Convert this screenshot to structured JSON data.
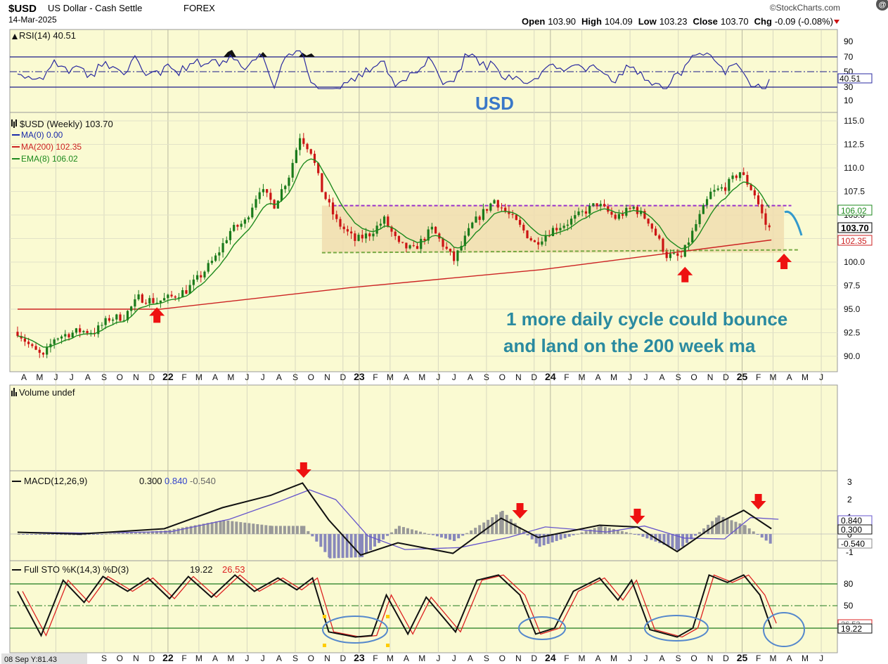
{
  "header": {
    "symbol": "$USD",
    "name": "US Dollar - Cash Settle",
    "exchange": "FOREX",
    "brand": "©StockCharts.com",
    "date": "14-Mar-2025",
    "ohlc": [
      {
        "label": "Open",
        "value": "103.90"
      },
      {
        "label": "High",
        "value": "104.09"
      },
      {
        "label": "Low",
        "value": "103.23"
      },
      {
        "label": "Close",
        "value": "103.70"
      },
      {
        "label": "Chg",
        "value": "-0.09 (-0.08%)"
      }
    ],
    "badge": "@"
  },
  "colors": {
    "plot_bg": "#fafad2",
    "candle_up": "#1a7a1a",
    "candle_down": "#cc1414",
    "ma200": "#cc2222",
    "ema8": "#1e8a1e",
    "resistance": "#9933cc",
    "support": "#77aa44",
    "range_fill": "#f0ddb0",
    "annotation": "#2a8aa0",
    "usd_label": "#3a78c8",
    "arrow": "#ee1111",
    "macd": "#111111",
    "signal": "#6655cc",
    "histogram": "#8888bb",
    "stoch_k": "#111111",
    "stoch_d": "#dd2222",
    "ellipse": "#5588cc"
  },
  "x_axis": {
    "labels": [
      "A",
      "M",
      "J",
      "J",
      "A",
      "S",
      "O",
      "N",
      "D",
      "22",
      "F",
      "M",
      "A",
      "M",
      "J",
      "J",
      "A",
      "S",
      "O",
      "N",
      "D",
      "23",
      "F",
      "M",
      "A",
      "M",
      "J",
      "J",
      "A",
      "S",
      "O",
      "N",
      "D",
      "24",
      "F",
      "M",
      "A",
      "M",
      "J",
      "J",
      "A",
      "S",
      "O",
      "N",
      "D",
      "25",
      "F",
      "M",
      "A",
      "M",
      "J"
    ],
    "bold": [
      "22",
      "23",
      "24",
      "25"
    ],
    "bottom_labels": [
      "S",
      "O",
      "N",
      "D",
      "22",
      "F",
      "M",
      "A",
      "M",
      "J",
      "J",
      "A",
      "S",
      "O",
      "N",
      "D",
      "23",
      "F",
      "M",
      "A",
      "M",
      "J",
      "J",
      "A",
      "S",
      "O",
      "N",
      "D",
      "24",
      "F",
      "M",
      "A",
      "M",
      "J",
      "J",
      "A",
      "S",
      "O",
      "N",
      "D",
      "25",
      "F",
      "M",
      "A",
      "M",
      "J"
    ],
    "cursor_readout": "08 Sep Y:81.43"
  },
  "panels": {
    "rsi": {
      "legend": "RSI(14) 40.51",
      "ticks": [
        "90",
        "70",
        "50",
        "30",
        "10"
      ],
      "value_tag": "40.51",
      "last": 40.51
    },
    "price": {
      "legend_title": "$USD (Weekly) 103.70",
      "legend_items": [
        {
          "name": "MA(0) 0.00",
          "color": "#1a2aaa"
        },
        {
          "name": "MA(200) 102.35",
          "color": "#cc2222"
        },
        {
          "name": "EMA(8) 106.02",
          "color": "#1e8a1e"
        }
      ],
      "ticks": [
        "115.0",
        "112.5",
        "110.0",
        "107.5",
        "105.0",
        "102.5",
        "100.0",
        "97.5",
        "95.0",
        "92.5",
        "90.0"
      ],
      "value_tags": [
        {
          "text": "106.02",
          "color": "#1e8a1e",
          "value": 106.02
        },
        {
          "text": "103.70",
          "color": "#000000",
          "value": 103.7
        },
        {
          "text": "102.35",
          "color": "#cc2222",
          "value": 102.35
        }
      ],
      "title_text": "USD",
      "annotation_lines": [
        "1 more daily cycle could bounce",
        "and land on the 200 week ma"
      ],
      "resistance_level": 106.0,
      "support_level": 101.0
    },
    "volume": {
      "legend": "Volume undef"
    },
    "macd": {
      "legend_prefix": "MACD(12,26,9)",
      "legend_values": [
        {
          "text": "0.300",
          "color": "#111111"
        },
        {
          "text": "0.840",
          "color": "#3344cc"
        },
        {
          "text": "-0.540",
          "color": "#666666"
        }
      ],
      "ticks": [
        "3",
        "2",
        "1",
        "0",
        "-1"
      ],
      "value_tags": [
        "0.840",
        "0.300",
        "-0.540"
      ]
    },
    "stoch": {
      "legend_prefix": "Full STO %K(14,3) %D(3)",
      "legend_values": [
        {
          "text": "19.22",
          "color": "#111111"
        },
        {
          "text": "26.53",
          "color": "#dd2222"
        }
      ],
      "ticks": [
        "80",
        "50",
        "20"
      ],
      "value_tags": [
        "26.53",
        "19.22"
      ]
    }
  },
  "chart_data": {
    "type": "candlestick",
    "title": "$USD US Dollar - Cash Settle FOREX",
    "interval": "weekly",
    "x_range": [
      "2021-04",
      "2025-06"
    ],
    "ylim": [
      89.5,
      115.5
    ],
    "price_path": [
      [
        "2021-04-05",
        92.6
      ],
      [
        "2021-05-03",
        90.8
      ],
      [
        "2021-05-24",
        89.9
      ],
      [
        "2021-06-14",
        91.9
      ],
      [
        "2021-07-05",
        92.3
      ],
      [
        "2021-08-02",
        92.7
      ],
      [
        "2021-08-30",
        92.6
      ],
      [
        "2021-09-27",
        94.0
      ],
      [
        "2021-10-25",
        94.2
      ],
      [
        "2021-11-22",
        96.2
      ],
      [
        "2021-12-27",
        95.8
      ],
      [
        "2022-01-24",
        96.3
      ],
      [
        "2022-02-21",
        97.0
      ],
      [
        "2022-03-21",
        98.6
      ],
      [
        "2022-04-18",
        100.5
      ],
      [
        "2022-05-16",
        103.3
      ],
      [
        "2022-06-13",
        104.3
      ],
      [
        "2022-07-11",
        107.8
      ],
      [
        "2022-08-08",
        106.1
      ],
      [
        "2022-09-05",
        109.2
      ],
      [
        "2022-09-26",
        113.4
      ],
      [
        "2022-10-17",
        111.8
      ],
      [
        "2022-11-07",
        107.6
      ],
      [
        "2022-12-05",
        104.3
      ],
      [
        "2023-01-09",
        102.3
      ],
      [
        "2023-02-06",
        103.0
      ],
      [
        "2023-03-06",
        104.5
      ],
      [
        "2023-04-03",
        101.8
      ],
      [
        "2023-05-01",
        101.3
      ],
      [
        "2023-06-05",
        103.5
      ],
      [
        "2023-07-17",
        100.2
      ],
      [
        "2023-08-21",
        104.0
      ],
      [
        "2023-10-02",
        106.6
      ],
      [
        "2023-11-13",
        104.2
      ],
      [
        "2023-12-18",
        102.0
      ],
      [
        "2024-01-22",
        103.5
      ],
      [
        "2024-02-19",
        104.2
      ],
      [
        "2024-04-15",
        106.2
      ],
      [
        "2024-05-20",
        104.7
      ],
      [
        "2024-06-24",
        105.8
      ],
      [
        "2024-07-22",
        104.4
      ],
      [
        "2024-08-26",
        100.7
      ],
      [
        "2024-09-23",
        100.5
      ],
      [
        "2024-10-21",
        104.0
      ],
      [
        "2024-11-18",
        107.3
      ],
      [
        "2024-12-16",
        108.0
      ],
      [
        "2025-01-13",
        109.6
      ],
      [
        "2025-02-10",
        107.2
      ],
      [
        "2025-03-03",
        104.0
      ],
      [
        "2025-03-14",
        103.7
      ]
    ],
    "last_candle": {
      "open": 103.9,
      "high": 104.09,
      "low": 103.23,
      "close": 103.7
    },
    "indicators": {
      "ma200": [
        [
          "2021-04-05",
          95.0
        ],
        [
          "2022-01-03",
          95.0
        ],
        [
          "2023-01-02",
          97.3
        ],
        [
          "2024-01-01",
          99.2
        ],
        [
          "2025-03-14",
          102.35
        ]
      ],
      "ema8_last": 106.02,
      "rsi14_last": 40.51,
      "macd_last": {
        "macd": 0.3,
        "signal": 0.84,
        "histogram": -0.54
      },
      "stoch_last": {
        "k": 19.22,
        "d": 26.53
      }
    },
    "annotations": {
      "resistance": 106.0,
      "support": 101.0,
      "range_box": {
        "from": "2022-11-07",
        "to": "2025-04-07",
        "low": 101.0,
        "high": 106.0
      },
      "up_arrows": [
        "2021-12-27",
        "2024-09-30",
        "2025-04-07"
      ],
      "macd_down_arrows": [
        "2022-10-03",
        "2023-11-20",
        "2024-07-01",
        "2025-02-17"
      ],
      "stoch_circles": [
        "2022-12 to 2023-01",
        "2023-12",
        "2024-07 to 2024-09",
        "2025-03 to 2025-04"
      ]
    }
  }
}
